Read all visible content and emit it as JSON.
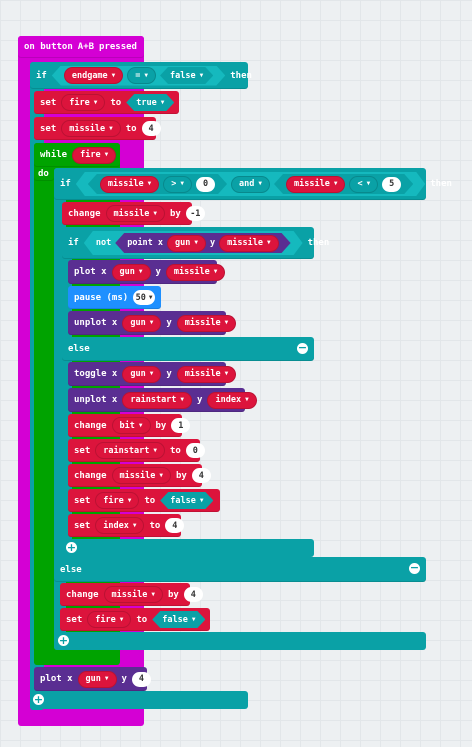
{
  "event": {
    "label": "on button",
    "button": "A+B",
    "suffix": "pressed"
  },
  "if1": {
    "kw": "if",
    "var": "endgame",
    "op": "=",
    "value": "false",
    "then": "then"
  },
  "set_fire_true": {
    "kw": "set",
    "var": "fire",
    "to": "to",
    "value": "true"
  },
  "set_missile_4": {
    "kw": "set",
    "var": "missile",
    "to": "to",
    "value": "4"
  },
  "while": {
    "kw": "while",
    "var": "fire",
    "do": "do"
  },
  "if2": {
    "kw": "if",
    "left_var": "missile",
    "left_op": ">",
    "left_val": "0",
    "and": "and",
    "right_var": "missile",
    "right_op": "<",
    "right_val": "5",
    "then": "then"
  },
  "change_missile_m1": {
    "kw": "change",
    "var": "missile",
    "by": "by",
    "value": "-1"
  },
  "if3": {
    "kw": "if",
    "not": "not",
    "point": "point x",
    "x_var": "gun",
    "y": "y",
    "y_var": "missile",
    "then": "then"
  },
  "plot1": {
    "kw": "plot x",
    "x_var": "gun",
    "y": "y",
    "y_var": "missile"
  },
  "pause": {
    "kw": "pause (ms)",
    "value": "50"
  },
  "unplot1": {
    "kw": "unplot x",
    "x_var": "gun",
    "y": "y",
    "y_var": "missile"
  },
  "else1": {
    "kw": "else"
  },
  "toggle": {
    "kw": "toggle x",
    "x_var": "gun",
    "y": "y",
    "y_var": "missile"
  },
  "unplot2": {
    "kw": "unplot x",
    "x_var": "rainstart",
    "y": "y",
    "y_var": "index"
  },
  "change_bit": {
    "kw": "change",
    "var": "bit",
    "by": "by",
    "value": "1"
  },
  "set_rainstart": {
    "kw": "set",
    "var": "rainstart",
    "to": "to",
    "value": "0"
  },
  "change_missile_4": {
    "kw": "change",
    "var": "missile",
    "by": "by",
    "value": "4"
  },
  "set_fire_false": {
    "kw": "set",
    "var": "fire",
    "to": "to",
    "value": "false"
  },
  "set_index": {
    "kw": "set",
    "var": "index",
    "to": "to",
    "value": "4"
  },
  "else2": {
    "kw": "else"
  },
  "change_missile_4b": {
    "kw": "change",
    "var": "missile",
    "by": "by",
    "value": "4"
  },
  "set_fire_false_b": {
    "kw": "set",
    "var": "fire",
    "to": "to",
    "value": "false"
  },
  "plot2": {
    "kw": "plot x",
    "x_var": "gun",
    "y": "y",
    "value": "4"
  },
  "icons": {
    "plus": "plus-icon",
    "minus": "minus-icon",
    "dropdown": "dropdown-arrow-icon"
  },
  "colors": {
    "event": "#d400d4",
    "logic": "#0aa1a6",
    "variables": "#dc143c",
    "loops": "#00a300",
    "led": "#5a2e92",
    "basic": "#1e90ff"
  }
}
